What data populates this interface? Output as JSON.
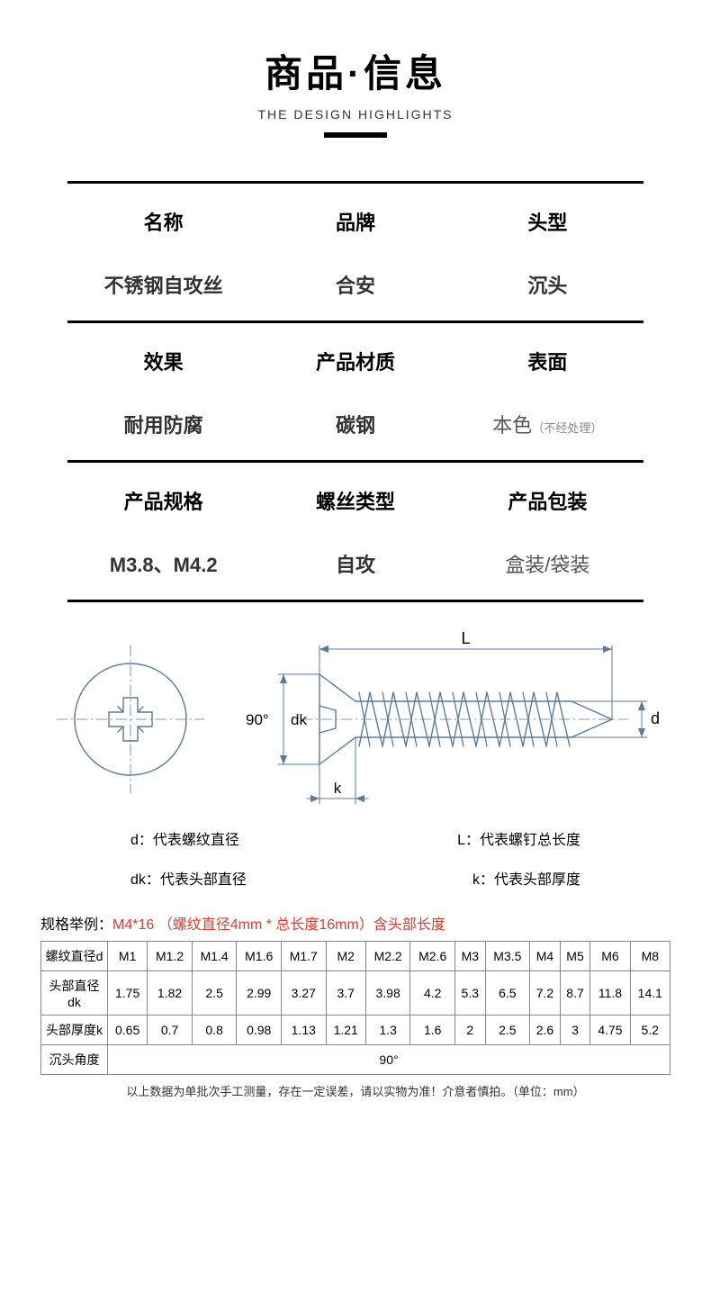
{
  "header": {
    "title": "商品·信息",
    "subtitle": "THE DESIGN HIGHLIGHTS"
  },
  "info": {
    "rows": [
      [
        {
          "label": "名称",
          "value": "不锈钢自攻丝",
          "em": true
        },
        {
          "label": "品牌",
          "value": "合安",
          "em": true
        },
        {
          "label": "头型",
          "value": "沉头",
          "em": true
        }
      ],
      [
        {
          "label": "效果",
          "value": "耐用防腐",
          "em": true
        },
        {
          "label": "产品材质",
          "value": "碳钢",
          "em": true
        },
        {
          "label": "表面",
          "value": "本色",
          "suffix": "（不经处理）",
          "em": false
        }
      ],
      [
        {
          "label": "产品规格",
          "value": "M3.8、M4.2",
          "em": true
        },
        {
          "label": "螺丝类型",
          "value": "自攻",
          "em": true
        },
        {
          "label": "产品包装",
          "value": "盒装/袋装",
          "em": false
        }
      ]
    ]
  },
  "diagram": {
    "angle_label": "90°",
    "dk_label": "dk",
    "k_label": "k",
    "L_label": "L",
    "d_label": "d",
    "stroke": "#5a7a99",
    "stroke_width": 1.4
  },
  "legend": [
    {
      "left": "d：代表螺纹直径",
      "right": "L：代表螺钉总长度"
    },
    {
      "left": "dk：代表头部直径",
      "right": "k：代表头部厚度"
    }
  ],
  "example": {
    "prefix": "规格举例：",
    "red": "M4*16  （螺纹直径4mm * 总长度16mm）含头部长度"
  },
  "spec_table": {
    "headers": [
      "M1",
      "M1.2",
      "M1.4",
      "M1.6",
      "M1.7",
      "M2",
      "M2.2",
      "M2.6",
      "M3",
      "M3.5",
      "M4",
      "M5",
      "M6",
      "M8"
    ],
    "row_d_label": "螺纹直径d",
    "row_dk_label": "头部直径dk",
    "row_dk": [
      "1.75",
      "1.82",
      "2.5",
      "2.99",
      "3.27",
      "3.7",
      "3.98",
      "4.2",
      "5.3",
      "6.5",
      "7.2",
      "8.7",
      "11.8",
      "14.1"
    ],
    "row_k_label": "头部厚度k",
    "row_k": [
      "0.65",
      "0.7",
      "0.8",
      "0.98",
      "1.13",
      "1.21",
      "1.3",
      "1.6",
      "2",
      "2.5",
      "2.6",
      "3",
      "4.75",
      "5.2"
    ],
    "row_angle_label": "沉头角度",
    "row_angle_value": "90°"
  },
  "footnote": "以上数据为单批次手工测量，存在一定误差，请以实物为准！介意者慎拍。（单位：mm）"
}
